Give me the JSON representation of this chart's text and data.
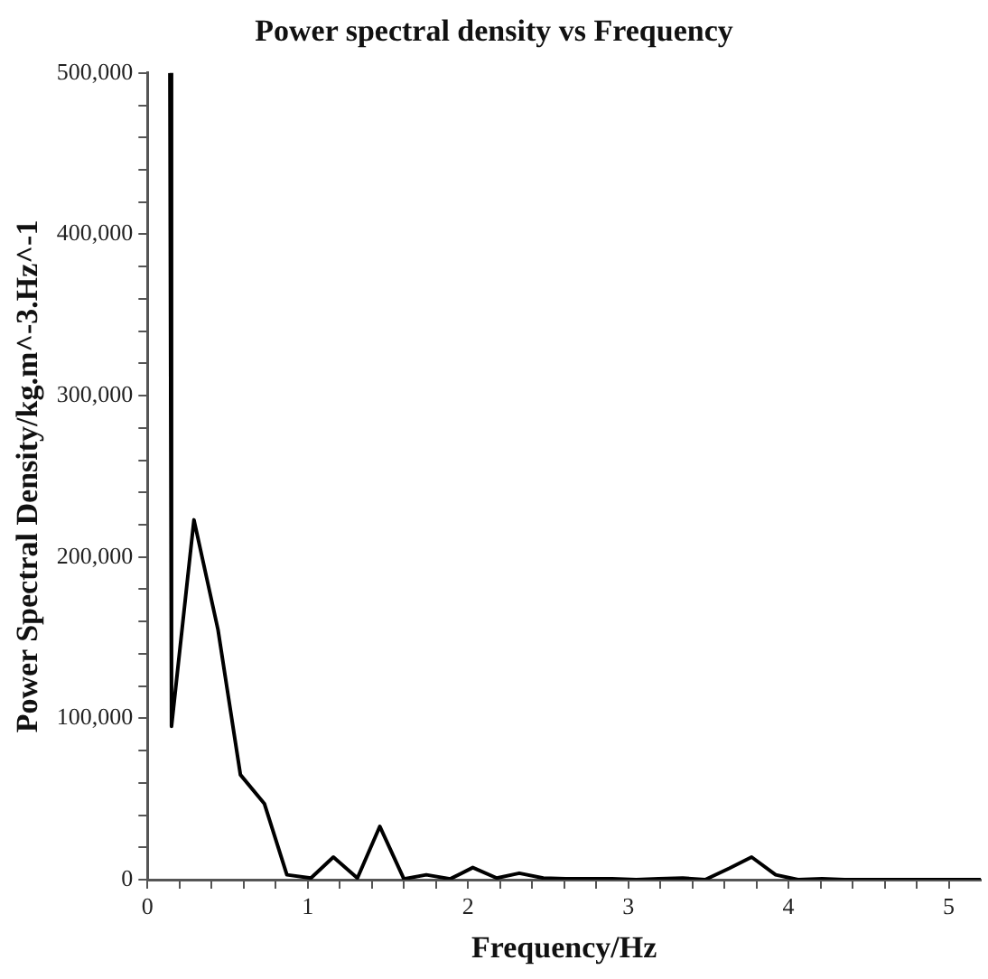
{
  "chart_data": {
    "type": "line",
    "title": "Power spectral density vs Frequency",
    "xlabel": "Frequency/Hz",
    "ylabel": "Power Spectral Density/kg.m^-3.Hz^-1",
    "x": [
      0.14,
      0.15,
      0.29,
      0.44,
      0.58,
      0.73,
      0.87,
      1.02,
      1.16,
      1.31,
      1.45,
      1.6,
      1.74,
      1.89,
      2.03,
      2.18,
      2.32,
      2.47,
      2.61,
      2.76,
      2.9,
      3.05,
      3.19,
      3.34,
      3.48,
      3.63,
      3.77,
      3.92,
      4.06,
      4.21,
      4.35,
      4.5,
      4.64,
      4.79,
      4.93,
      5.08,
      5.2
    ],
    "series": [
      {
        "color": "#000000",
        "values": [
          500000,
          95000,
          223000,
          155000,
          65000,
          47000,
          3000,
          1000,
          14000,
          1000,
          33000,
          500,
          3000,
          500,
          7500,
          1000,
          4000,
          1000,
          500,
          500,
          500,
          0,
          500,
          1000,
          0,
          7000,
          14000,
          3000,
          0,
          500,
          0,
          0,
          0,
          0,
          0,
          0,
          0
        ]
      }
    ],
    "xlim": [
      0,
      5.2
    ],
    "xticks": [
      0,
      {
        "value": 0.2,
        "label": null
      },
      {
        "value": 0.4,
        "label": null
      },
      {
        "value": 0.6,
        "label": null
      },
      {
        "value": 0.8,
        "label": null
      },
      1,
      {
        "value": 1.2,
        "label": null
      },
      {
        "value": 1.4,
        "label": null
      },
      {
        "value": 1.6,
        "label": null
      },
      {
        "value": 1.8,
        "label": null
      },
      2,
      {
        "value": 2.2,
        "label": null
      },
      {
        "value": 2.4,
        "label": null
      },
      {
        "value": 2.6,
        "label": null
      },
      {
        "value": 2.8,
        "label": null
      },
      3,
      {
        "value": 3.2,
        "label": null
      },
      {
        "value": 3.4,
        "label": null
      },
      {
        "value": 3.6,
        "label": null
      },
      {
        "value": 3.8,
        "label": null
      },
      4,
      {
        "value": 4.2,
        "label": null
      },
      {
        "value": 4.4,
        "label": null
      },
      {
        "value": 4.6,
        "label": null
      },
      {
        "value": 4.8,
        "label": null
      },
      5
    ],
    "ylim": [
      0,
      500000
    ],
    "yticks": [
      {
        "value": 0,
        "label": "0"
      },
      {
        "value": 20000,
        "label": null
      },
      {
        "value": 40000,
        "label": null
      },
      {
        "value": 60000,
        "label": null
      },
      {
        "value": 80000,
        "label": null
      },
      {
        "value": 100000,
        "label": "100,000"
      },
      {
        "value": 120000,
        "label": null
      },
      {
        "value": 140000,
        "label": null
      },
      {
        "value": 160000,
        "label": null
      },
      {
        "value": 180000,
        "label": null
      },
      {
        "value": 200000,
        "label": "200,000"
      },
      {
        "value": 220000,
        "label": null
      },
      {
        "value": 240000,
        "label": null
      },
      {
        "value": 260000,
        "label": null
      },
      {
        "value": 280000,
        "label": null
      },
      {
        "value": 300000,
        "label": "300,000"
      },
      {
        "value": 320000,
        "label": null
      },
      {
        "value": 340000,
        "label": null
      },
      {
        "value": 360000,
        "label": null
      },
      {
        "value": 380000,
        "label": null
      },
      {
        "value": 400000,
        "label": "400,000"
      },
      {
        "value": 420000,
        "label": null
      },
      {
        "value": 440000,
        "label": null
      },
      {
        "value": 460000,
        "label": null
      },
      {
        "value": 480000,
        "label": null
      },
      {
        "value": 500000,
        "label": "500,000"
      }
    ],
    "grid": false,
    "legend": false,
    "marker": "none",
    "line_style": "solid"
  }
}
